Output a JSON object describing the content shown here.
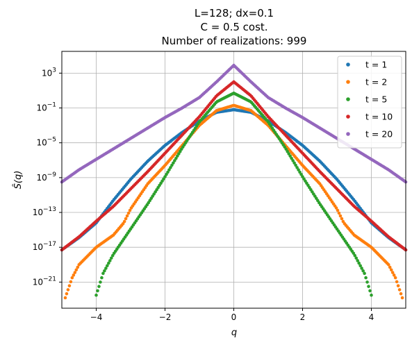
{
  "chart_data": {
    "type": "scatter",
    "title_lines": [
      "L=128; dx=0.1",
      "C = 0.5 cost.",
      "Number of realizations: 999"
    ],
    "xlabel": "q",
    "ylabel": "Ŝ(q)",
    "xlim": [
      -5,
      5
    ],
    "ylim_log10": [
      -24,
      5.5
    ],
    "y_scale": "log",
    "grid": true,
    "legend_position": "top-right",
    "x_ticks": [
      -4,
      -2,
      0,
      2,
      4
    ],
    "x_tick_labels": [
      "−4",
      "−2",
      "0",
      "2",
      "4"
    ],
    "y_ticks_log10": [
      3,
      -1,
      -5,
      -9,
      -13,
      -17,
      -21
    ],
    "y_tick_base": "10",
    "y_tick_exponents": [
      "3",
      "−1",
      "−5",
      "−9",
      "−13",
      "−17",
      "−21"
    ],
    "series": [
      {
        "name": "t = 1",
        "color": "#1f77b4",
        "q_range": [
          -5,
          5
        ],
        "points": [
          [
            0,
            -1.2
          ],
          [
            0.5,
            -1.5
          ],
          [
            1,
            -2.5
          ],
          [
            1.5,
            -3.8
          ],
          [
            2,
            -5.3
          ],
          [
            2.5,
            -7.1
          ],
          [
            3,
            -9.2
          ],
          [
            3.5,
            -11.6
          ],
          [
            4,
            -14.2
          ],
          [
            4.5,
            -15.9
          ],
          [
            5,
            -17.3
          ]
        ]
      },
      {
        "name": "t = 2",
        "color": "#ff7f0e",
        "q_range": [
          -4.9,
          4.9
        ],
        "points": [
          [
            0,
            -0.7
          ],
          [
            0.5,
            -1.3
          ],
          [
            1,
            -3.0
          ],
          [
            1.5,
            -5.3
          ],
          [
            2,
            -7.6
          ],
          [
            2.5,
            -9.7
          ],
          [
            3,
            -12.6
          ],
          [
            3.2,
            -14.2
          ],
          [
            3.5,
            -15.6
          ],
          [
            4,
            -17.0
          ],
          [
            4.5,
            -19.0
          ],
          [
            4.7,
            -20.5
          ],
          [
            4.9,
            -22.8
          ]
        ]
      },
      {
        "name": "t = 5",
        "color": "#2ca02c",
        "q_range": [
          -4,
          4
        ],
        "points": [
          [
            0,
            0.7
          ],
          [
            0.5,
            -0.3
          ],
          [
            1,
            -2.6
          ],
          [
            1.5,
            -5.6
          ],
          [
            2,
            -8.9
          ],
          [
            2.5,
            -12.0
          ],
          [
            3,
            -14.9
          ],
          [
            3.5,
            -17.8
          ],
          [
            3.8,
            -20.0
          ],
          [
            4,
            -22.5
          ]
        ]
      },
      {
        "name": "t = 10",
        "color": "#d62728",
        "q_range": [
          -5,
          5
        ],
        "points": [
          [
            0,
            2.0
          ],
          [
            0.5,
            0.4
          ],
          [
            1,
            -2.0
          ],
          [
            1.5,
            -4.1
          ],
          [
            2,
            -6.2
          ],
          [
            2.5,
            -8.3
          ],
          [
            3,
            -10.3
          ],
          [
            3.5,
            -12.3
          ],
          [
            4,
            -14.0
          ],
          [
            4.5,
            -15.8
          ],
          [
            5,
            -17.3
          ]
        ]
      },
      {
        "name": "t = 20",
        "color": "#9467bd",
        "q_range": [
          -5,
          5
        ],
        "points": [
          [
            0,
            3.9
          ],
          [
            0.5,
            2.0
          ],
          [
            1,
            0.2
          ],
          [
            1.5,
            -1.0
          ],
          [
            2,
            -2.1
          ],
          [
            2.5,
            -3.3
          ],
          [
            3,
            -4.5
          ],
          [
            3.5,
            -5.7
          ],
          [
            4,
            -6.9
          ],
          [
            4.5,
            -8.1
          ],
          [
            5,
            -9.5
          ]
        ]
      }
    ]
  }
}
